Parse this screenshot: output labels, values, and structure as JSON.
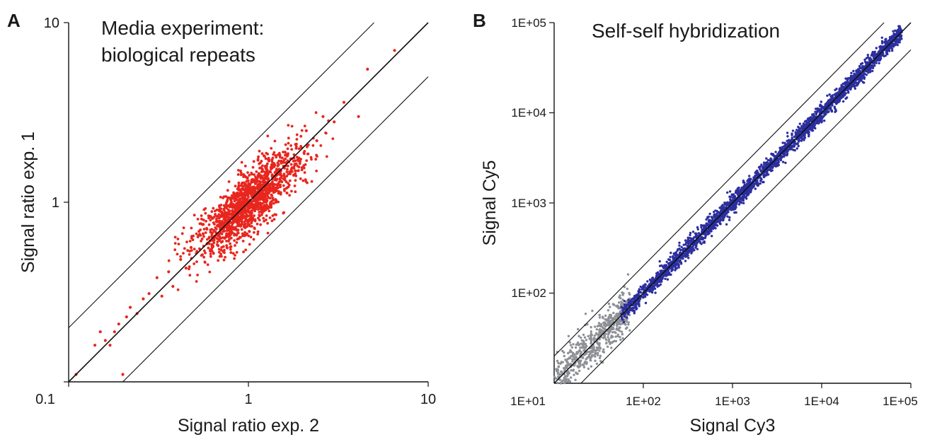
{
  "colors": {
    "panel_a_points": "#e8261e",
    "panel_b_bright_points": "#2b2f9e",
    "panel_b_dim_points": "#8d9196",
    "lines": "#111111"
  },
  "chart_data": [
    {
      "panel_letter": "A",
      "type": "scatter",
      "title_lines": [
        "Media experiment:",
        "biological repeats"
      ],
      "xlabel": "Signal ratio exp. 2",
      "ylabel": "Signal ratio exp. 1",
      "xscale": "log",
      "yscale": "log",
      "xlim": [
        0.1,
        10
      ],
      "ylim": [
        0.1,
        10
      ],
      "x_ticks": [
        0.1,
        1,
        10
      ],
      "y_ticks": [
        0.1,
        1,
        10
      ],
      "x_tick_labels": [
        "0.1",
        "1",
        "10"
      ],
      "y_tick_labels": [
        "0.1",
        "1",
        "10"
      ],
      "grid": false,
      "legend": "none",
      "reference_lines": [
        {
          "kind": "identity",
          "slope": 1,
          "factor": 1
        },
        {
          "kind": "upper-bound",
          "slope": 1,
          "factor": 2
        },
        {
          "kind": "lower-bound",
          "slope": 1,
          "factor": 0.5
        }
      ],
      "series": [
        {
          "color_key": "panel_a_points",
          "distribution": {
            "approx_count": 1500,
            "center": [
              1.0,
              1.0
            ],
            "log10_spread_along": 0.14,
            "log10_spread_across": 0.045,
            "log10_x_range": [
              -0.9,
              0.85
            ]
          },
          "points": [
            [
              0.11,
              0.11
            ],
            [
              0.14,
              0.16
            ],
            [
              0.15,
              0.19
            ],
            [
              0.16,
              0.17
            ],
            [
              0.17,
              0.16
            ],
            [
              0.18,
              0.19
            ],
            [
              0.19,
              0.21
            ],
            [
              0.2,
              0.11
            ],
            [
              0.21,
              0.23
            ],
            [
              0.22,
              0.26
            ],
            [
              0.24,
              0.24
            ],
            [
              0.26,
              0.29
            ],
            [
              0.28,
              0.31
            ],
            [
              0.31,
              0.38
            ],
            [
              0.33,
              0.3
            ],
            [
              0.36,
              0.41
            ],
            [
              0.38,
              0.34
            ],
            [
              0.42,
              0.48
            ],
            [
              0.45,
              0.43
            ],
            [
              0.48,
              0.56
            ],
            [
              1.6,
              1.9
            ],
            [
              1.9,
              1.7
            ],
            [
              2.1,
              2.5
            ],
            [
              2.4,
              2.2
            ],
            [
              2.6,
              3.0
            ],
            [
              3.0,
              2.8
            ],
            [
              3.4,
              3.6
            ],
            [
              4.1,
              3.0
            ],
            [
              4.6,
              5.5
            ],
            [
              6.5,
              7.0
            ]
          ]
        }
      ]
    },
    {
      "panel_letter": "B",
      "type": "scatter",
      "title_lines": [
        "Self-self hybridization"
      ],
      "xlabel": "Signal Cy3",
      "ylabel": "Signal Cy5",
      "xscale": "log",
      "yscale": "log",
      "xlim": [
        10,
        100000
      ],
      "ylim": [
        10,
        100000
      ],
      "x_ticks": [
        10,
        100,
        1000,
        10000,
        100000
      ],
      "y_ticks": [
        10,
        100,
        1000,
        10000,
        100000
      ],
      "x_tick_labels": [
        "1E+01",
        "1E+02",
        "1E+03",
        "1E+04",
        "1E+05"
      ],
      "y_tick_labels": [
        "1E+01",
        "1E+02",
        "1E+03",
        "1E+04",
        "1E+05"
      ],
      "grid": false,
      "legend": "none",
      "reference_lines": [
        {
          "kind": "identity",
          "slope": 1,
          "factor": 1
        },
        {
          "kind": "upper-bound",
          "slope": 1,
          "factor": 2
        },
        {
          "kind": "lower-bound",
          "slope": 1,
          "factor": 0.5
        }
      ],
      "series": [
        {
          "color_key": "panel_b_dim_points",
          "distribution": {
            "approx_count": 600,
            "log10_x_range": [
              1.0,
              1.85
            ],
            "log10_spread_across": 0.12
          },
          "points": [
            [
              11,
              14
            ],
            [
              13,
              11
            ],
            [
              15,
              19
            ],
            [
              18,
              22
            ],
            [
              21,
              16
            ],
            [
              26,
              31
            ],
            [
              32,
              27
            ],
            [
              38,
              45
            ],
            [
              45,
              40
            ],
            [
              55,
              60
            ]
          ]
        },
        {
          "color_key": "panel_b_bright_points",
          "distribution": {
            "approx_count": 2500,
            "log10_x_range": [
              1.75,
              4.9
            ],
            "log10_spread_across": 0.05
          },
          "points": [
            [
              70,
              75
            ],
            [
              150,
              140
            ],
            [
              400,
              420
            ],
            [
              1000,
              1000
            ],
            [
              2500,
              2600
            ],
            [
              8000,
              7800
            ],
            [
              20000,
              21000
            ],
            [
              50000,
              52000
            ],
            [
              75000,
              80000
            ]
          ]
        }
      ]
    }
  ]
}
